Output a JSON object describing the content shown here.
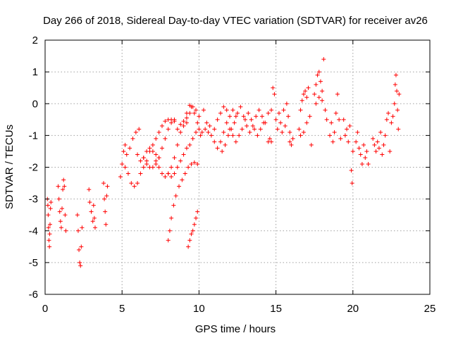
{
  "chart_data": {
    "type": "scatter",
    "title": "Day 266 of 2018, Sidereal Day-to-day VTEC variation (SDTVAR) for receiver av26",
    "xlabel": "GPS time / hours",
    "ylabel": "SDTVAR / TECUs",
    "xlim": [
      0,
      25
    ],
    "ylim": [
      -6,
      2
    ],
    "xticks": [
      "0",
      "5",
      "10",
      "15",
      "20",
      "25"
    ],
    "yticks": [
      "-6",
      "-5",
      "-4",
      "-3",
      "-2",
      "-1",
      "0",
      "1",
      "2"
    ],
    "grid": true,
    "marker": "plus",
    "color": "#ff0000",
    "series": [
      {
        "points": [
          [
            0.15,
            -3.0
          ],
          [
            0.18,
            -3.2
          ],
          [
            0.2,
            -3.5
          ],
          [
            0.22,
            -3.9
          ],
          [
            0.25,
            -4.3
          ],
          [
            0.28,
            -4.5
          ],
          [
            0.3,
            -4.1
          ],
          [
            0.32,
            -3.8
          ],
          [
            0.35,
            -3.3
          ],
          [
            0.38,
            -3.1
          ],
          [
            0.85,
            -2.6
          ],
          [
            0.9,
            -3.0
          ],
          [
            0.95,
            -3.4
          ],
          [
            1.0,
            -3.7
          ],
          [
            1.05,
            -3.9
          ],
          [
            1.1,
            -3.3
          ],
          [
            1.15,
            -2.7
          ],
          [
            1.2,
            -2.4
          ],
          [
            1.25,
            -2.6
          ],
          [
            1.3,
            -3.5
          ],
          [
            1.35,
            -4.0
          ],
          [
            2.1,
            -3.5
          ],
          [
            2.15,
            -4.0
          ],
          [
            2.2,
            -4.6
          ],
          [
            2.25,
            -5.0
          ],
          [
            2.3,
            -5.1
          ],
          [
            2.35,
            -4.5
          ],
          [
            2.4,
            -3.9
          ],
          [
            2.85,
            -2.7
          ],
          [
            2.9,
            -3.1
          ],
          [
            3.0,
            -3.4
          ],
          [
            3.1,
            -3.7
          ],
          [
            3.15,
            -3.2
          ],
          [
            3.2,
            -3.6
          ],
          [
            3.25,
            -3.9
          ],
          [
            3.8,
            -2.5
          ],
          [
            3.85,
            -3.0
          ],
          [
            3.9,
            -3.4
          ],
          [
            3.95,
            -3.8
          ],
          [
            4.0,
            -2.9
          ],
          [
            4.05,
            -2.6
          ],
          [
            4.9,
            -2.3
          ],
          [
            5.0,
            -1.9
          ],
          [
            5.1,
            -1.5
          ],
          [
            5.2,
            -1.3
          ],
          [
            5.3,
            -1.6
          ],
          [
            5.5,
            -1.4
          ],
          [
            5.7,
            -1.1
          ],
          [
            5.9,
            -0.9
          ],
          [
            6.1,
            -0.8
          ],
          [
            5.2,
            -2.0
          ],
          [
            5.4,
            -2.2
          ],
          [
            5.6,
            -2.5
          ],
          [
            5.8,
            -2.6
          ],
          [
            6.0,
            -2.5
          ],
          [
            6.2,
            -2.2
          ],
          [
            6.4,
            -2.0
          ],
          [
            6.6,
            -1.8
          ],
          [
            6.8,
            -1.5
          ],
          [
            7.0,
            -1.3
          ],
          [
            7.2,
            -1.1
          ],
          [
            7.4,
            -0.9
          ],
          [
            7.6,
            -0.7
          ],
          [
            7.8,
            -0.55
          ],
          [
            8.0,
            -0.5
          ],
          [
            8.2,
            -0.5
          ],
          [
            8.4,
            -0.5
          ],
          [
            6.0,
            -1.6
          ],
          [
            6.2,
            -1.8
          ],
          [
            6.4,
            -1.7
          ],
          [
            6.6,
            -1.5
          ],
          [
            6.8,
            -1.4
          ],
          [
            7.0,
            -1.5
          ],
          [
            7.2,
            -1.6
          ],
          [
            7.4,
            -1.7
          ],
          [
            6.4,
            -1.7
          ],
          [
            6.6,
            -1.9
          ],
          [
            6.8,
            -2.0
          ],
          [
            7.0,
            -2.0
          ],
          [
            7.2,
            -1.9
          ],
          [
            7.4,
            -1.7
          ],
          [
            7.6,
            -1.4
          ],
          [
            7.8,
            -1.1
          ],
          [
            8.0,
            -0.8
          ],
          [
            8.2,
            -0.6
          ],
          [
            8.4,
            -0.55
          ],
          [
            7.2,
            -1.8
          ],
          [
            7.4,
            -2.0
          ],
          [
            7.6,
            -2.2
          ],
          [
            7.8,
            -2.3
          ],
          [
            8.0,
            -2.2
          ],
          [
            8.2,
            -2.0
          ],
          [
            8.4,
            -1.7
          ],
          [
            8.6,
            -1.3
          ],
          [
            8.8,
            -0.9
          ],
          [
            9.0,
            -0.7
          ],
          [
            9.2,
            -0.6
          ],
          [
            8.0,
            -2.2
          ],
          [
            8.2,
            -2.3
          ],
          [
            8.4,
            -2.2
          ],
          [
            8.6,
            -2.0
          ],
          [
            8.8,
            -1.8
          ],
          [
            9.0,
            -1.6
          ],
          [
            9.2,
            -1.4
          ],
          [
            9.4,
            -1.3
          ],
          [
            9.6,
            -1.1
          ],
          [
            9.8,
            -0.9
          ],
          [
            8.6,
            -0.8
          ],
          [
            8.8,
            -0.65
          ],
          [
            9.0,
            -0.55
          ],
          [
            9.2,
            -0.45
          ],
          [
            9.4,
            -0.3
          ],
          [
            9.6,
            -0.1
          ],
          [
            9.8,
            -0.2
          ],
          [
            10.0,
            -0.4
          ],
          [
            9.2,
            -0.3
          ],
          [
            9.4,
            -0.05
          ],
          [
            9.5,
            -0.1
          ],
          [
            9.7,
            -0.3
          ],
          [
            9.9,
            -0.6
          ],
          [
            8.0,
            -4.3
          ],
          [
            8.1,
            -4.0
          ],
          [
            8.2,
            -3.6
          ],
          [
            8.35,
            -3.2
          ],
          [
            8.5,
            -2.9
          ],
          [
            8.7,
            -2.6
          ],
          [
            8.9,
            -2.4
          ],
          [
            9.1,
            -2.2
          ],
          [
            9.3,
            -2.0
          ],
          [
            9.5,
            -1.9
          ],
          [
            9.7,
            -1.85
          ],
          [
            9.9,
            -1.9
          ],
          [
            9.3,
            -4.5
          ],
          [
            9.4,
            -4.3
          ],
          [
            9.5,
            -4.1
          ],
          [
            9.6,
            -4.0
          ],
          [
            9.7,
            -3.8
          ],
          [
            9.8,
            -3.6
          ],
          [
            9.9,
            -3.4
          ],
          [
            10.0,
            -0.8
          ],
          [
            10.1,
            -1.0
          ],
          [
            10.2,
            -0.9
          ],
          [
            10.4,
            -0.8
          ],
          [
            10.6,
            -0.9
          ],
          [
            10.8,
            -1.0
          ],
          [
            11.0,
            -0.8
          ],
          [
            11.2,
            -0.5
          ],
          [
            11.4,
            -0.3
          ],
          [
            11.6,
            -0.1
          ],
          [
            11.8,
            -0.2
          ],
          [
            10.3,
            -0.2
          ],
          [
            10.5,
            -0.6
          ],
          [
            10.7,
            -0.7
          ],
          [
            11.0,
            -1.2
          ],
          [
            11.2,
            -1.4
          ],
          [
            11.4,
            -1.2
          ],
          [
            11.6,
            -0.9
          ],
          [
            11.8,
            -0.6
          ],
          [
            12.0,
            -0.4
          ],
          [
            12.2,
            -0.2
          ],
          [
            12.4,
            -0.4
          ],
          [
            11.5,
            -1.5
          ],
          [
            11.7,
            -1.3
          ],
          [
            11.9,
            -1.0
          ],
          [
            12.1,
            -0.8
          ],
          [
            12.3,
            -0.6
          ],
          [
            12.5,
            -0.3
          ],
          [
            12.7,
            -0.1
          ],
          [
            12.9,
            -0.4
          ],
          [
            13.1,
            -0.7
          ],
          [
            13.3,
            -0.9
          ],
          [
            13.5,
            -0.7
          ],
          [
            13.7,
            -0.4
          ],
          [
            13.9,
            -0.2
          ],
          [
            14.1,
            -0.4
          ],
          [
            14.3,
            -0.6
          ],
          [
            14.5,
            -0.3
          ],
          [
            14.7,
            -0.2
          ],
          [
            12.0,
            -0.8
          ],
          [
            12.2,
            -1.0
          ],
          [
            12.4,
            -1.2
          ],
          [
            12.6,
            -1.0
          ],
          [
            12.8,
            -0.8
          ],
          [
            13.0,
            -0.5
          ],
          [
            13.2,
            -0.3
          ],
          [
            13.4,
            -0.5
          ],
          [
            13.6,
            -0.8
          ],
          [
            13.8,
            -1.0
          ],
          [
            14.0,
            -0.8
          ],
          [
            14.2,
            -0.6
          ],
          [
            14.5,
            -1.2
          ],
          [
            14.6,
            -1.1
          ],
          [
            14.7,
            -1.2
          ],
          [
            14.8,
            0.5
          ],
          [
            14.9,
            0.3
          ],
          [
            15.0,
            -0.5
          ],
          [
            15.1,
            -0.8
          ],
          [
            15.2,
            -0.3
          ],
          [
            15.3,
            -0.6
          ],
          [
            15.4,
            -0.9
          ],
          [
            15.5,
            -0.2
          ],
          [
            15.6,
            -0.7
          ],
          [
            15.7,
            0.0
          ],
          [
            15.8,
            -0.4
          ],
          [
            15.9,
            -1.2
          ],
          [
            16.0,
            -1.3
          ],
          [
            16.1,
            -1.1
          ],
          [
            15.9,
            -0.9
          ],
          [
            16.5,
            -0.8
          ],
          [
            16.6,
            -0.2
          ],
          [
            16.7,
            0.1
          ],
          [
            16.8,
            0.3
          ],
          [
            16.9,
            0.4
          ],
          [
            17.0,
            0.2
          ],
          [
            17.1,
            0.5
          ],
          [
            16.6,
            -1.0
          ],
          [
            16.8,
            -0.9
          ],
          [
            17.0,
            -0.6
          ],
          [
            17.2,
            -0.4
          ],
          [
            17.3,
            -1.3
          ],
          [
            17.5,
            0.3
          ],
          [
            17.6,
            0.6
          ],
          [
            17.7,
            0.9
          ],
          [
            17.8,
            1.0
          ],
          [
            17.9,
            0.7
          ],
          [
            18.0,
            0.4
          ],
          [
            17.6,
            0.0
          ],
          [
            17.8,
            0.2
          ],
          [
            18.0,
            0.1
          ],
          [
            18.1,
            1.4
          ],
          [
            18.2,
            -0.2
          ],
          [
            18.3,
            -0.5
          ],
          [
            18.5,
            -1.0
          ],
          [
            18.6,
            -0.6
          ],
          [
            18.7,
            -1.2
          ],
          [
            18.8,
            -0.9
          ],
          [
            18.9,
            -0.3
          ],
          [
            19.0,
            0.3
          ],
          [
            19.1,
            -0.5
          ],
          [
            19.2,
            -1.1
          ],
          [
            19.4,
            -0.5
          ],
          [
            19.5,
            -1.0
          ],
          [
            19.6,
            -0.8
          ],
          [
            19.7,
            -1.2
          ],
          [
            19.8,
            -0.7
          ],
          [
            19.9,
            -2.1
          ],
          [
            19.95,
            -2.5
          ],
          [
            20.0,
            -1.5
          ],
          [
            20.2,
            -1.2
          ],
          [
            20.3,
            -0.9
          ],
          [
            20.4,
            -1.4
          ],
          [
            20.5,
            -1.6
          ],
          [
            20.6,
            -1.9
          ],
          [
            20.7,
            -1.3
          ],
          [
            20.8,
            -1.7
          ],
          [
            20.9,
            -1.5
          ],
          [
            21.0,
            -1.9
          ],
          [
            21.3,
            -1.1
          ],
          [
            21.4,
            -1.3
          ],
          [
            21.5,
            -1.5
          ],
          [
            21.6,
            -1.2
          ],
          [
            21.7,
            -1.4
          ],
          [
            21.8,
            -0.9
          ],
          [
            21.9,
            -1.6
          ],
          [
            22.0,
            -1.3
          ],
          [
            22.1,
            -1.0
          ],
          [
            22.2,
            -0.5
          ],
          [
            22.3,
            -0.3
          ],
          [
            22.4,
            -1.5
          ],
          [
            22.5,
            -0.6
          ],
          [
            22.6,
            -0.4
          ],
          [
            22.7,
            0.0
          ],
          [
            22.75,
            0.6
          ],
          [
            22.8,
            0.9
          ],
          [
            22.85,
            0.4
          ],
          [
            22.9,
            -0.2
          ],
          [
            22.95,
            -0.8
          ],
          [
            23.0,
            0.3
          ]
        ]
      }
    ]
  }
}
